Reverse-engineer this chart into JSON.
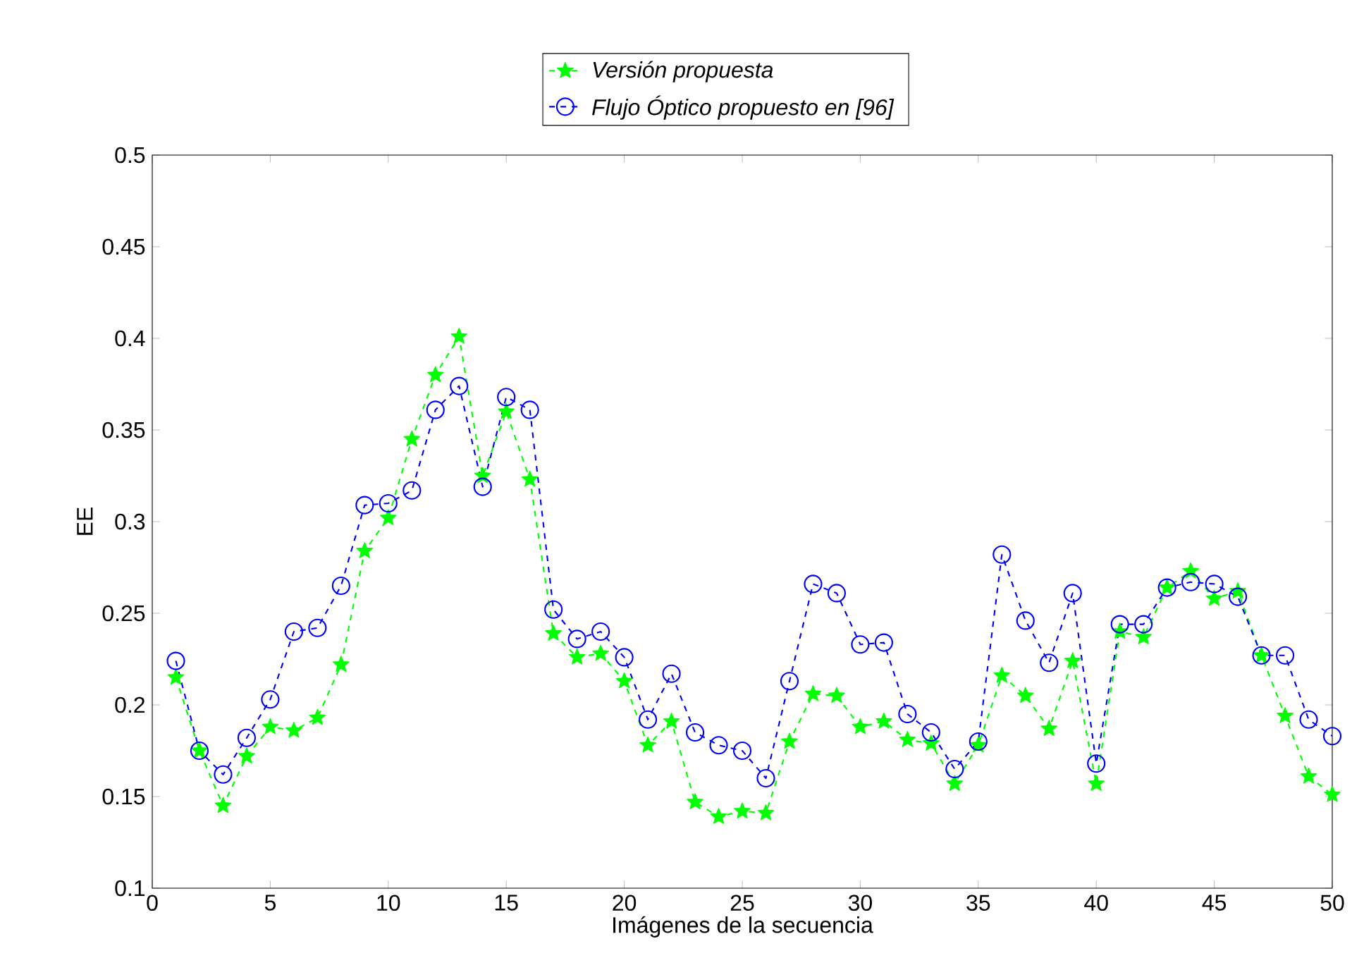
{
  "chart_data": {
    "type": "line",
    "xlabel": "Imágenes de la secuencia",
    "ylabel": "EE",
    "x": [
      1,
      2,
      3,
      4,
      5,
      6,
      7,
      8,
      9,
      10,
      11,
      12,
      13,
      14,
      15,
      16,
      17,
      18,
      19,
      20,
      21,
      22,
      23,
      24,
      25,
      26,
      27,
      28,
      29,
      30,
      31,
      32,
      33,
      34,
      35,
      36,
      37,
      38,
      39,
      40,
      41,
      42,
      43,
      44,
      45,
      46,
      47,
      48,
      49,
      50
    ],
    "series": [
      {
        "name": "Versión propuesta",
        "color": "#00ff00",
        "marker": "star",
        "values": [
          0.215,
          0.175,
          0.145,
          0.172,
          0.188,
          0.186,
          0.193,
          0.222,
          0.284,
          0.302,
          0.345,
          0.38,
          0.401,
          0.325,
          0.36,
          0.323,
          0.239,
          0.226,
          0.228,
          0.213,
          0.178,
          0.191,
          0.147,
          0.139,
          0.142,
          0.141,
          0.18,
          0.206,
          0.205,
          0.188,
          0.191,
          0.181,
          0.179,
          0.157,
          0.178,
          0.216,
          0.205,
          0.187,
          0.224,
          0.157,
          0.24,
          0.237,
          0.264,
          0.273,
          0.258,
          0.262,
          0.227,
          0.194,
          0.161,
          0.151
        ]
      },
      {
        "name": "Flujo Óptico propuesto en [96]",
        "color": "#0000ff",
        "marker": "circle",
        "values": [
          0.224,
          0.175,
          0.162,
          0.182,
          0.203,
          0.24,
          0.242,
          0.265,
          0.309,
          0.31,
          0.317,
          0.361,
          0.374,
          0.319,
          0.368,
          0.361,
          0.252,
          0.236,
          0.24,
          0.226,
          0.192,
          0.217,
          0.185,
          0.178,
          0.175,
          0.16,
          0.213,
          0.266,
          0.261,
          0.233,
          0.234,
          0.195,
          0.185,
          0.165,
          0.18,
          0.282,
          0.246,
          0.223,
          0.261,
          0.168,
          0.244,
          0.244,
          0.264,
          0.267,
          0.266,
          0.259,
          0.227,
          0.227,
          0.192,
          0.183
        ]
      }
    ],
    "xlim": [
      0,
      50
    ],
    "xticks": [
      0,
      5,
      10,
      15,
      20,
      25,
      30,
      35,
      40,
      45,
      50
    ],
    "ylim": [
      0.1,
      0.5
    ],
    "yticks": [
      0.1,
      0.15,
      0.2,
      0.25,
      0.3,
      0.35,
      0.4,
      0.45,
      0.5
    ],
    "line_style": "dashed",
    "legend": "top"
  }
}
